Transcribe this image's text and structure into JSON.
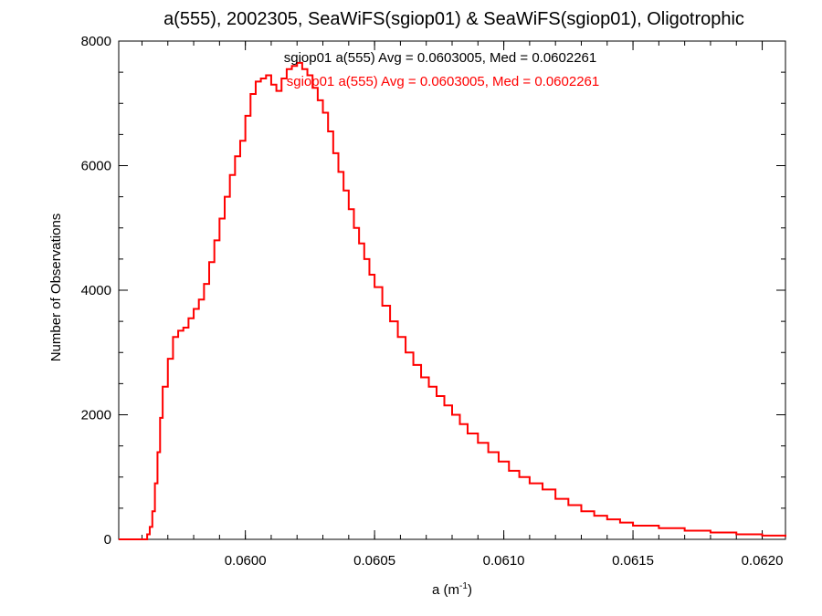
{
  "chart_data": {
    "type": "histogram-step",
    "title": "a(555), 2002305, SeaWiFS(sgiop01) & SeaWiFS(sgiop01), Oligotrophic",
    "xlabel_main": "a (m",
    "xlabel_sup": "-1",
    "xlabel_close": ")",
    "ylabel": "Number of Observations",
    "xlim": [
      0.05951,
      0.06209
    ],
    "ylim": [
      0,
      8000
    ],
    "x_tick_labels": [
      "0.0600",
      "0.0605",
      "0.0610",
      "0.0615",
      "0.0620"
    ],
    "x_tick_values": [
      0.06,
      0.0605,
      0.061,
      0.0615,
      0.062
    ],
    "y_tick_labels": [
      "0",
      "2000",
      "4000",
      "6000",
      "8000"
    ],
    "y_tick_values": [
      0,
      2000,
      4000,
      6000,
      8000
    ],
    "annotations": [
      {
        "text": "sgiop01 a(555) Avg = 0.0603005, Med = 0.0602261",
        "color": "#000000"
      },
      {
        "text": "sgiop01 a(555) Avg = 0.0603005, Med = 0.0602261",
        "color": "#ff0000"
      }
    ],
    "series": [
      {
        "color": "#ff0000",
        "x": [
          0.05951,
          0.05955,
          0.05959,
          0.05961,
          0.05962,
          0.05963,
          0.05964,
          0.05965,
          0.05966,
          0.05967,
          0.05968,
          0.0597,
          0.05972,
          0.05974,
          0.05976,
          0.05978,
          0.0598,
          0.05982,
          0.05984,
          0.05986,
          0.05988,
          0.0599,
          0.05992,
          0.05994,
          0.05996,
          0.05998,
          0.06,
          0.06002,
          0.06004,
          0.06006,
          0.06008,
          0.0601,
          0.06012,
          0.06014,
          0.06016,
          0.06018,
          0.0602,
          0.06022,
          0.06024,
          0.06026,
          0.06028,
          0.0603,
          0.06032,
          0.06034,
          0.06036,
          0.06038,
          0.0604,
          0.06042,
          0.06044,
          0.06046,
          0.06048,
          0.0605,
          0.06053,
          0.06056,
          0.06059,
          0.06062,
          0.06065,
          0.06068,
          0.06071,
          0.06074,
          0.06077,
          0.0608,
          0.06083,
          0.06086,
          0.0609,
          0.06094,
          0.06098,
          0.06102,
          0.06106,
          0.0611,
          0.06115,
          0.0612,
          0.06125,
          0.0613,
          0.06135,
          0.0614,
          0.06145,
          0.0615,
          0.0616,
          0.0617,
          0.0618,
          0.0619,
          0.062,
          0.06209
        ],
        "y": [
          0,
          0,
          0,
          0,
          80,
          200,
          450,
          900,
          1400,
          1950,
          2450,
          2900,
          3250,
          3350,
          3400,
          3550,
          3700,
          3850,
          4100,
          4450,
          4800,
          5150,
          5500,
          5850,
          6150,
          6400,
          6800,
          7150,
          7350,
          7400,
          7450,
          7300,
          7200,
          7400,
          7550,
          7600,
          7650,
          7550,
          7450,
          7250,
          7050,
          6850,
          6550,
          6200,
          5900,
          5600,
          5300,
          5000,
          4750,
          4500,
          4250,
          4050,
          3750,
          3500,
          3250,
          3000,
          2800,
          2600,
          2450,
          2300,
          2150,
          2000,
          1850,
          1700,
          1550,
          1400,
          1250,
          1100,
          1000,
          900,
          800,
          650,
          550,
          450,
          380,
          320,
          270,
          220,
          180,
          140,
          110,
          80,
          60,
          40
        ]
      }
    ]
  }
}
